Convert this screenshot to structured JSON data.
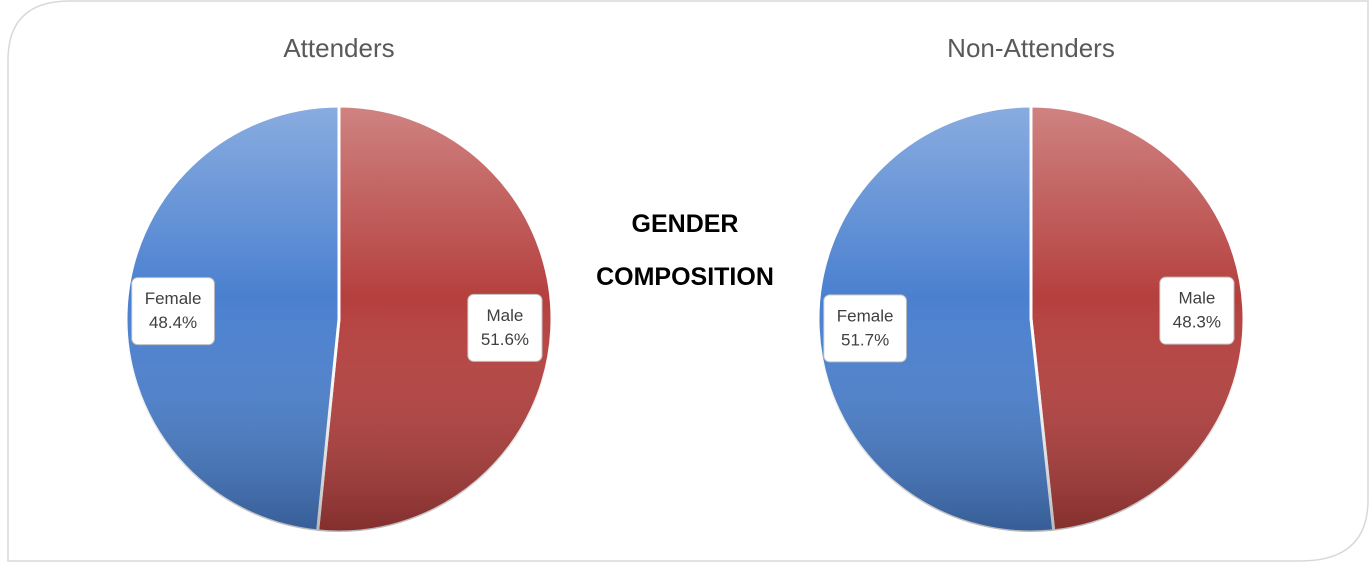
{
  "title": "GENDER COMPOSITION",
  "chart_data": [
    {
      "type": "pie",
      "title": "Attenders",
      "categories": [
        "Male",
        "Female"
      ],
      "values": [
        51.6,
        48.4
      ],
      "value_labels": [
        "51.6%",
        "48.4%"
      ],
      "colors": [
        "#b5403e",
        "#4a80cf"
      ]
    },
    {
      "type": "pie",
      "title": "Non-Attenders",
      "categories": [
        "Male",
        "Female"
      ],
      "values": [
        48.3,
        51.7
      ],
      "value_labels": [
        "48.3%",
        "51.7%"
      ],
      "colors": [
        "#b5403e",
        "#4a80cf"
      ]
    }
  ]
}
